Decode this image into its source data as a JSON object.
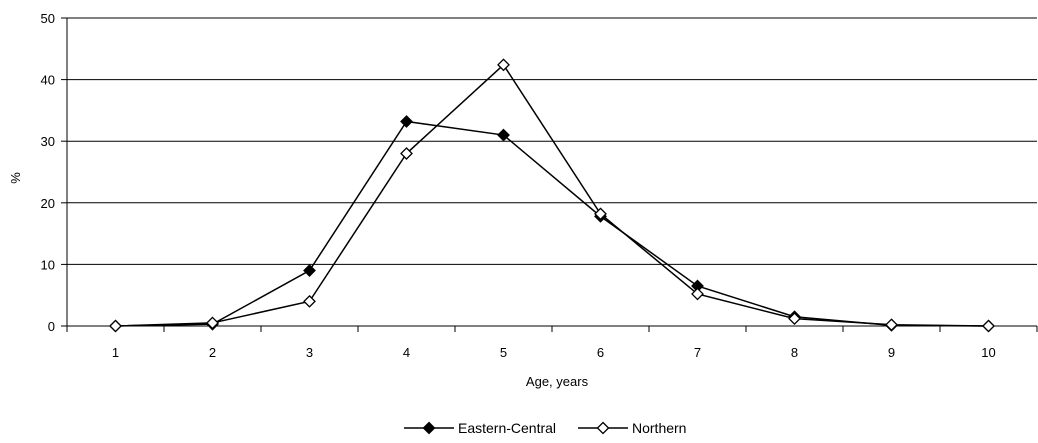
{
  "chart_data": {
    "type": "line",
    "title": "",
    "xlabel": "Age, years",
    "ylabel": "%",
    "categories": [
      "1",
      "2",
      "3",
      "4",
      "5",
      "6",
      "7",
      "8",
      "9",
      "10"
    ],
    "ylim": [
      0,
      50
    ],
    "yticks": [
      "0",
      "10",
      "20",
      "30",
      "40",
      "50"
    ],
    "grid": "horizontal",
    "legend_position": "bottom",
    "series": [
      {
        "name": "Eastern-Central",
        "marker": "filled-diamond",
        "color": "#000000",
        "values": [
          0,
          0.3,
          9,
          33.2,
          31,
          17.8,
          6.5,
          1.5,
          0.1,
          0
        ]
      },
      {
        "name": "Northern",
        "marker": "open-diamond",
        "color": "#000000",
        "values": [
          0,
          0.5,
          4,
          28,
          42.4,
          18.2,
          5.2,
          1.2,
          0.2,
          0
        ]
      }
    ]
  }
}
